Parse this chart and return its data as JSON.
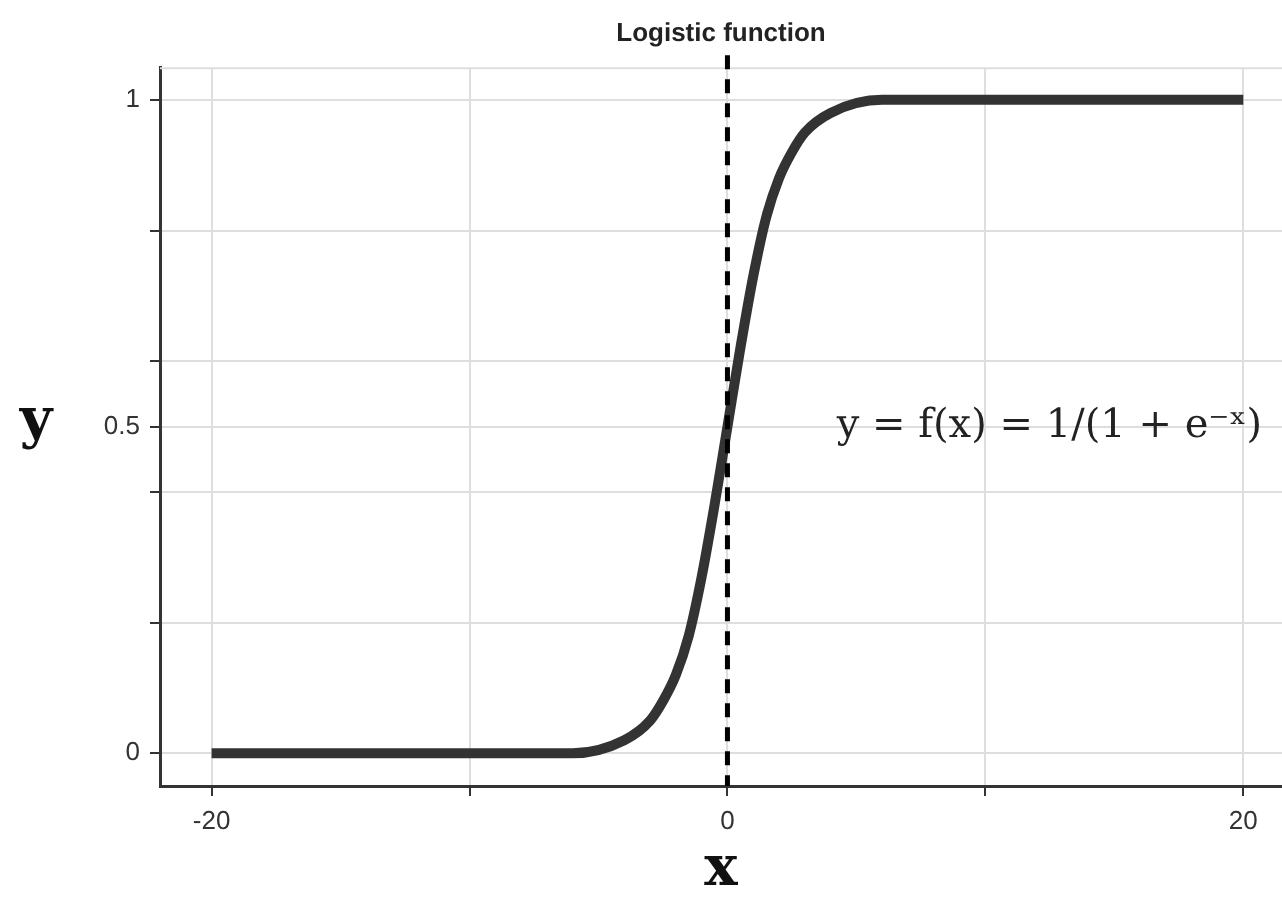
{
  "chart_data": {
    "type": "line",
    "title": "Logistic function",
    "xlabel": "x",
    "ylabel": "y",
    "annotations": [
      "y = f(x) = 1/(1 + e⁻ˣ)"
    ],
    "x": [
      -20,
      -10,
      -8,
      -6,
      -4,
      -3,
      -2.5,
      -2,
      -1.5,
      -1,
      -0.5,
      0,
      0.5,
      1,
      1.5,
      2,
      2.5,
      3,
      4,
      6,
      8,
      10,
      20
    ],
    "series": [
      {
        "color": "#333333",
        "values": [
          0,
          0,
          0,
          0,
          0.02,
          0.05,
          0.08,
          0.12,
          0.18,
          0.27,
          0.38,
          0.5,
          0.62,
          0.73,
          0.82,
          0.88,
          0.92,
          0.95,
          0.98,
          1,
          1,
          1,
          1
        ]
      }
    ],
    "xlim": [
      -22,
      21.5
    ],
    "ylim": [
      -0.05,
      1.05
    ],
    "xticks": [
      -20,
      {
        "value": -10,
        "label": null
      },
      0,
      {
        "value": 10,
        "label": null
      },
      20
    ],
    "yticks": [
      0,
      {
        "value": 0.2,
        "label": null
      },
      {
        "value": 0.4,
        "label": null
      },
      0.5,
      {
        "value": 0.6,
        "label": null
      },
      {
        "value": 0.8,
        "label": null
      },
      1
    ],
    "grid": true,
    "legend": false,
    "marker": "none",
    "line_style": "solid",
    "ref_lines": [
      {
        "axis": "x",
        "value": 0,
        "color": "#000000",
        "line_style": "dashed"
      }
    ]
  }
}
